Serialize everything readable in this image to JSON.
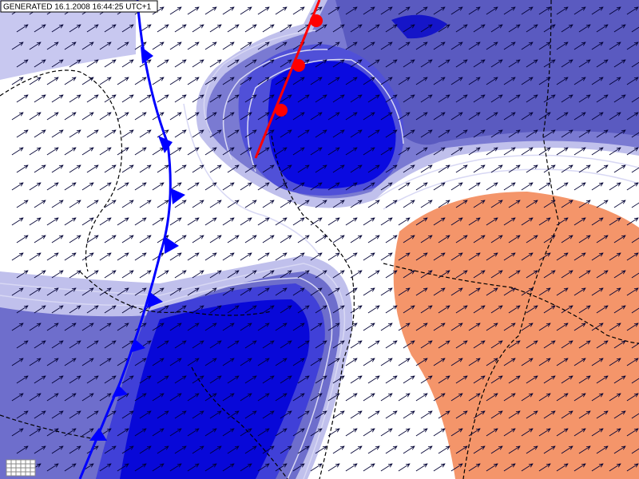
{
  "header": {
    "generated": "GENERATED 16.1.2008 16:44:25 UTC+1"
  }
}
